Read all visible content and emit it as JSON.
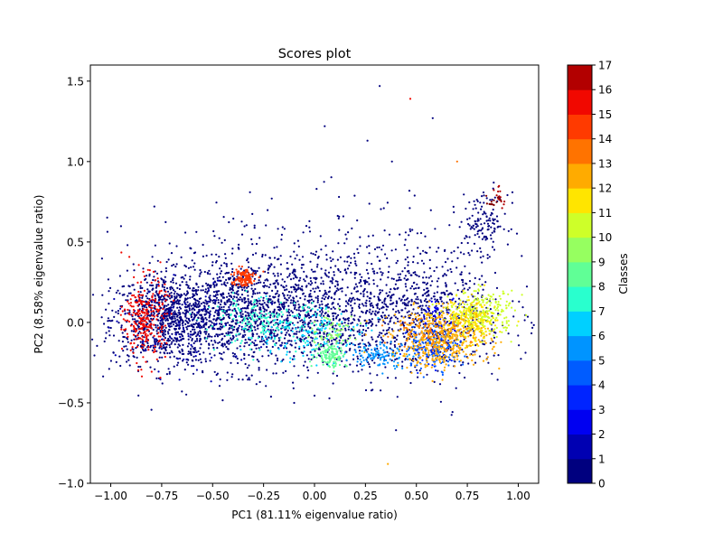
{
  "chart_data": {
    "type": "scatter",
    "title": "Scores plot",
    "xlabel": "PC1 (81.11% eigenvalue ratio)",
    "ylabel": "PC2 (8.58% eigenvalue ratio)",
    "xlim": [
      -1.1,
      1.1
    ],
    "ylim": [
      -1.0,
      1.6
    ],
    "xticks": [
      -1.0,
      -0.75,
      -0.5,
      -0.25,
      0.0,
      0.25,
      0.5,
      0.75,
      1.0
    ],
    "xtick_labels": [
      "−1.00",
      "−0.75",
      "−0.50",
      "−0.25",
      "0.00",
      "0.25",
      "0.50",
      "0.75",
      "1.00"
    ],
    "yticks": [
      -1.0,
      -0.5,
      0.0,
      0.5,
      1.0,
      1.5
    ],
    "ytick_labels": [
      "−1.0",
      "−0.5",
      "0.0",
      "0.5",
      "1.0",
      "1.5"
    ],
    "grid": false,
    "colorbar": {
      "label": "Classes",
      "min": 0,
      "max": 17,
      "ticks": [
        "0",
        "1",
        "2",
        "3",
        "4",
        "5",
        "6",
        "7",
        "8",
        "9",
        "10",
        "11",
        "12",
        "13",
        "14",
        "15",
        "16",
        "17"
      ],
      "colors": [
        "#00007f",
        "#0000b2",
        "#0000f1",
        "#0024ff",
        "#005cff",
        "#0094ff",
        "#00d0ff",
        "#29ffce",
        "#60ff96",
        "#96ff60",
        "#ceff29",
        "#ffe500",
        "#ffab00",
        "#ff7300",
        "#ff3a00",
        "#f10800",
        "#b20000",
        "#7f0000"
      ]
    },
    "clusters": [
      {
        "class": 0,
        "cx": -0.72,
        "cy": 0.02,
        "sx": 0.14,
        "sy": 0.14,
        "n": 850
      },
      {
        "class": 0,
        "cx": -0.35,
        "cy": 0.05,
        "sx": 0.22,
        "sy": 0.17,
        "n": 950
      },
      {
        "class": 0,
        "cx": 0.05,
        "cy": 0.05,
        "sx": 0.25,
        "sy": 0.17,
        "n": 650
      },
      {
        "class": 0,
        "cx": 0.55,
        "cy": 0.05,
        "sx": 0.2,
        "sy": 0.2,
        "n": 600
      },
      {
        "class": 0,
        "cx": 0.83,
        "cy": 0.62,
        "sx": 0.06,
        "sy": 0.09,
        "n": 130
      },
      {
        "class": 0,
        "cx": 0.0,
        "cy": 0.3,
        "sx": 0.45,
        "sy": 0.22,
        "n": 350
      },
      {
        "class": 1,
        "cx": -0.6,
        "cy": -0.05,
        "sx": 0.18,
        "sy": 0.14,
        "n": 90
      },
      {
        "class": 2,
        "cx": 0.62,
        "cy": 0.05,
        "sx": 0.06,
        "sy": 0.05,
        "n": 50
      },
      {
        "class": 3,
        "cx": 0.6,
        "cy": -0.15,
        "sx": 0.07,
        "sy": 0.07,
        "n": 60
      },
      {
        "class": 4,
        "cx": 0.58,
        "cy": -0.15,
        "sx": 0.07,
        "sy": 0.07,
        "n": 140
      },
      {
        "class": 5,
        "cx": 0.32,
        "cy": -0.2,
        "sx": 0.07,
        "sy": 0.04,
        "n": 110
      },
      {
        "class": 6,
        "cx": -0.05,
        "cy": -0.08,
        "sx": 0.15,
        "sy": 0.08,
        "n": 140
      },
      {
        "class": 7,
        "cx": -0.25,
        "cy": 0.0,
        "sx": 0.15,
        "sy": 0.07,
        "n": 180
      },
      {
        "class": 8,
        "cx": 0.08,
        "cy": -0.2,
        "sx": 0.04,
        "sy": 0.04,
        "n": 120
      },
      {
        "class": 9,
        "cx": 0.1,
        "cy": -0.05,
        "sx": 0.06,
        "sy": 0.05,
        "n": 60
      },
      {
        "class": 10,
        "cx": 0.82,
        "cy": 0.05,
        "sx": 0.08,
        "sy": 0.07,
        "n": 260
      },
      {
        "class": 11,
        "cx": 0.75,
        "cy": 0.0,
        "sx": 0.07,
        "sy": 0.07,
        "n": 200
      },
      {
        "class": 12,
        "cx": 0.62,
        "cy": -0.1,
        "sx": 0.12,
        "sy": 0.09,
        "n": 450
      },
      {
        "class": 13,
        "cx": 0.55,
        "cy": -0.05,
        "sx": 0.08,
        "sy": 0.06,
        "n": 60
      },
      {
        "class": 14,
        "cx": -0.35,
        "cy": 0.28,
        "sx": 0.03,
        "sy": 0.03,
        "n": 120
      },
      {
        "class": 15,
        "cx": -0.83,
        "cy": 0.02,
        "sx": 0.05,
        "sy": 0.13,
        "n": 260
      },
      {
        "class": 16,
        "cx": 0.9,
        "cy": 0.78,
        "sx": 0.025,
        "sy": 0.03,
        "n": 15
      },
      {
        "class": 17,
        "cx": 0.88,
        "cy": 0.75,
        "sx": 0.02,
        "sy": 0.03,
        "n": 12
      }
    ],
    "outliers": [
      {
        "x": 0.32,
        "y": 1.47,
        "class": 0
      },
      {
        "x": 0.47,
        "y": 1.39,
        "class": 15
      },
      {
        "x": 0.58,
        "y": 1.27,
        "class": 0
      },
      {
        "x": 0.05,
        "y": 1.22,
        "class": 0
      },
      {
        "x": 0.26,
        "y": 1.13,
        "class": 0
      },
      {
        "x": 0.38,
        "y": 1.0,
        "class": 0
      },
      {
        "x": 0.7,
        "y": 1.0,
        "class": 13
      },
      {
        "x": 0.4,
        "y": -0.67,
        "class": 0
      },
      {
        "x": 0.36,
        "y": -0.88,
        "class": 12
      },
      {
        "x": -0.1,
        "y": -0.5,
        "class": 0
      },
      {
        "x": 0.34,
        "y": 0.71,
        "class": 0
      },
      {
        "x": -0.04,
        "y": 0.6,
        "class": 0
      },
      {
        "x": 0.01,
        "y": 0.83,
        "class": 0
      },
      {
        "x": 0.12,
        "y": 0.78,
        "class": 0
      },
      {
        "x": -0.21,
        "y": 0.77,
        "class": 0
      }
    ]
  }
}
